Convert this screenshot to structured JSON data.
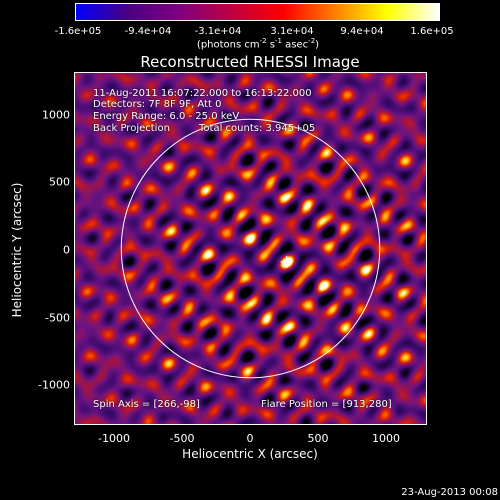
{
  "colorbar": {
    "ticks": [
      "-1.6e+05",
      "-9.4e+04",
      "-3.1e+04",
      "3.1e+04",
      "9.4e+04",
      "1.6e+05"
    ],
    "unit_prefix": "(photons cm",
    "unit_exp1": "-2",
    "unit_mid1": " s",
    "unit_exp2": "-1",
    "unit_mid2": " asec",
    "unit_exp3": "-2",
    "unit_suffix": ")",
    "colors": [
      "#0000ff",
      "#4b0082",
      "#800080",
      "#c00040",
      "#ff0000",
      "#ff8000",
      "#ffff00",
      "#ffffff"
    ]
  },
  "title": "Reconstructed RHESSI Image",
  "annotations": {
    "time_range": "11-Aug-2011 16:07:22.000 to 16:13:22.000",
    "detectors": "Detectors: 7F 8F 9F, Att 0",
    "energy_range": "Energy Range: 6.0 - 25.0 keV",
    "method": "Back Projection",
    "total_counts": "Total counts: 3.945+05",
    "spin_axis": "Spin Axis = [266,-98]",
    "flare_position": "Flare Position = [913,280]"
  },
  "axes": {
    "xlabel": "Heliocentric X (arcsec)",
    "ylabel": "Heliocentric Y (arcsec)",
    "xticks": [
      "-1000",
      "-500",
      "0",
      "500",
      "1000"
    ],
    "yticks": [
      "1000",
      "500",
      "0",
      "-500",
      "-1000"
    ],
    "x_range": [
      -1290,
      1290
    ],
    "y_range": [
      -1290,
      1290
    ]
  },
  "solar_limb_radius_arcsec": 950,
  "map_center_marker": [
    266,
    -98
  ],
  "footer": {
    "date": "23-Aug-2013 00:08"
  }
}
